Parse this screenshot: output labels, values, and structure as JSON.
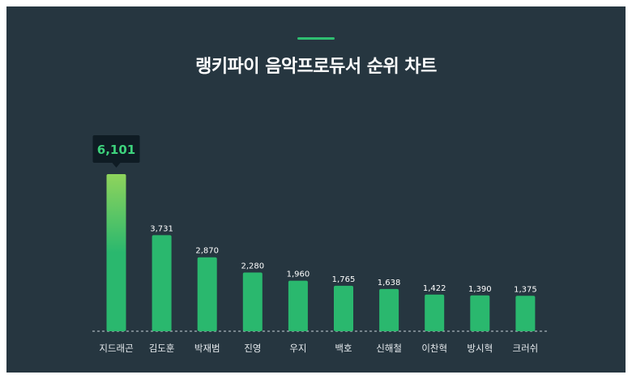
{
  "chart_data": {
    "type": "bar",
    "title": "랭키파이 음악프로듀서 순위 차트",
    "categories": [
      "지드래곤",
      "김도훈",
      "박재범",
      "진영",
      "우지",
      "백호",
      "신해철",
      "이찬혁",
      "방시혁",
      "크러쉬"
    ],
    "values": [
      6101,
      3731,
      2870,
      2280,
      1960,
      1765,
      1638,
      1422,
      1390,
      1375
    ],
    "value_labels": [
      "6,101",
      "3,731",
      "2,870",
      "2,280",
      "1,960",
      "1,765",
      "1,638",
      "1,422",
      "1,390",
      "1,375"
    ],
    "highlight_index": 0,
    "ylim": [
      0,
      6101
    ],
    "grid": false,
    "legend": "none",
    "colors": {
      "background": "#263640",
      "bar": "#2ab86e",
      "highlight_top": "#8fd45c",
      "tooltip_bg": "#0f1c24",
      "tooltip_text": "#3dd27c",
      "accent": "#2fbf71"
    }
  }
}
